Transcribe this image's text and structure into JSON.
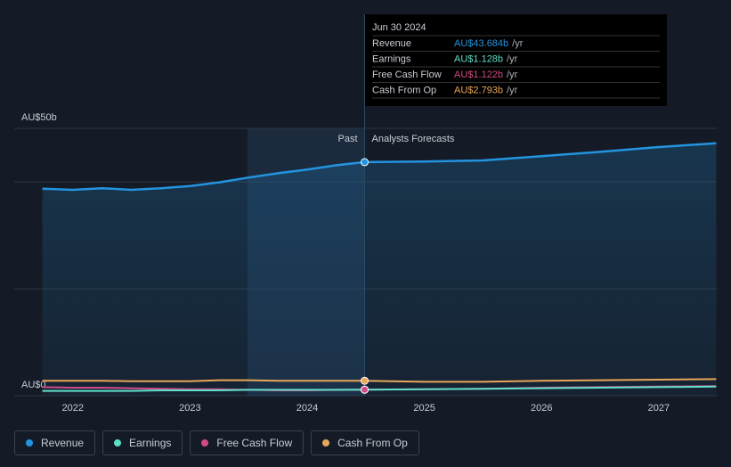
{
  "chart_data": {
    "type": "line",
    "x": [
      2021.74,
      2022.0,
      2022.25,
      2022.5,
      2022.75,
      2023.0,
      2023.25,
      2023.5,
      2023.75,
      2024.0,
      2024.25,
      2024.49,
      2025.0,
      2025.5,
      2026.0,
      2026.5,
      2027.0,
      2027.49
    ],
    "series": [
      {
        "name": "Revenue",
        "color": "#2394df",
        "values": [
          38.7,
          38.5,
          38.8,
          38.5,
          38.8,
          39.2,
          39.9,
          40.8,
          41.6,
          42.3,
          43.1,
          43.684,
          43.8,
          44.0,
          44.8,
          45.6,
          46.5,
          47.2
        ]
      },
      {
        "name": "Earnings",
        "color": "#5fdfc8",
        "values": [
          0.9,
          0.9,
          0.9,
          0.9,
          1.0,
          1.0,
          1.0,
          1.1,
          1.1,
          1.1,
          1.1,
          1.128,
          1.2,
          1.3,
          1.4,
          1.5,
          1.6,
          1.7
        ]
      },
      {
        "name": "Free Cash Flow",
        "color": "#d04a86",
        "values": [
          1.6,
          1.5,
          1.5,
          1.4,
          1.3,
          1.2,
          1.2,
          1.1,
          1.0,
          1.0,
          1.1,
          1.122,
          1.2,
          1.3,
          1.5,
          1.6,
          1.7,
          1.8
        ]
      },
      {
        "name": "Cash From Op",
        "color": "#e8a85a",
        "values": [
          2.8,
          2.8,
          2.8,
          2.7,
          2.7,
          2.7,
          2.9,
          2.9,
          2.8,
          2.8,
          2.8,
          2.793,
          2.6,
          2.6,
          2.8,
          2.9,
          3.0,
          3.1
        ]
      }
    ],
    "xlim": [
      2021.5,
      2027.495
    ],
    "xticks": [
      2022,
      2023,
      2024,
      2025,
      2026,
      2027
    ],
    "ylim": [
      0,
      50
    ],
    "yticks": [
      {
        "value": 0,
        "label": "AU$0"
      },
      {
        "value": 50,
        "label": "AU$50b"
      }
    ],
    "gridlines": [
      0,
      20,
      40,
      50
    ],
    "past_label": "Past",
    "forecast_label": "Analysts Forecasts",
    "past_end": 2024.49,
    "highlight": [
      2023.49,
      2024.49
    ],
    "tooltip": {
      "date": "Jun 30 2024",
      "values": [
        "AU$43.684b",
        "AU$1.128b",
        "AU$1.122b",
        "AU$2.793b"
      ],
      "unit": "/yr"
    }
  }
}
